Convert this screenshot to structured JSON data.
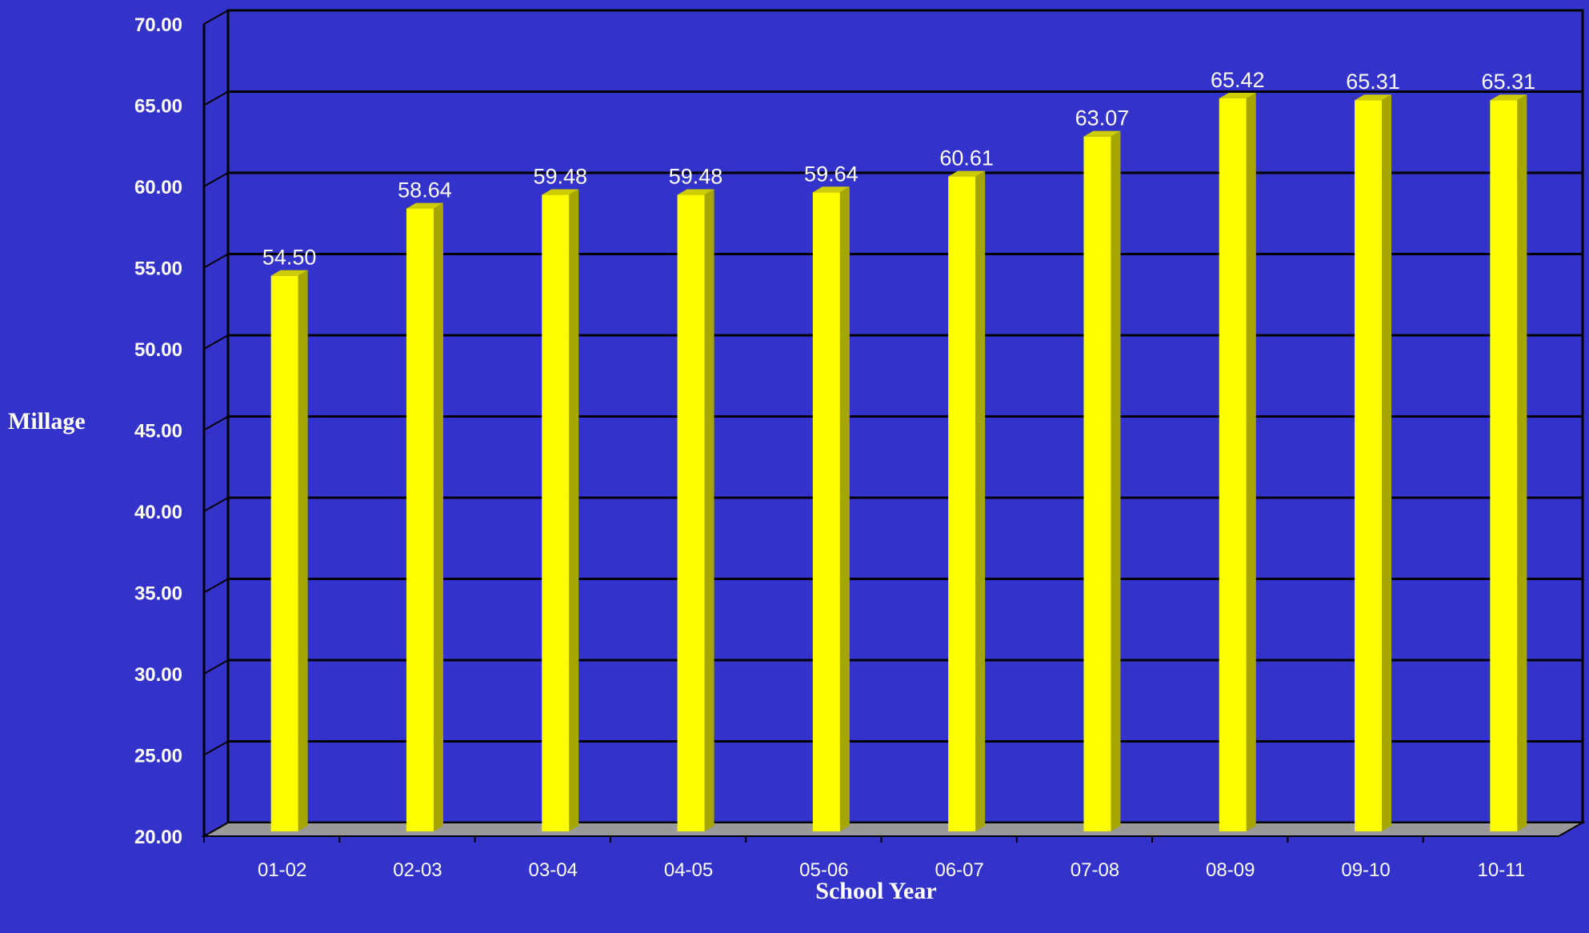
{
  "chart_data": {
    "type": "bar",
    "title": "",
    "xlabel": "School Year",
    "ylabel": "Millage",
    "categories": [
      "01-02",
      "02-03",
      "03-04",
      "04-05",
      "05-06",
      "06-07",
      "07-08",
      "08-09",
      "09-10",
      "10-11"
    ],
    "values": [
      54.5,
      58.64,
      59.48,
      59.48,
      59.64,
      60.61,
      63.07,
      65.42,
      65.31,
      65.31
    ],
    "value_labels": [
      "54.50",
      "58.64",
      "59.48",
      "59.48",
      "59.64",
      "60.61",
      "63.07",
      "65.42",
      "65.31",
      "65.31"
    ],
    "ylim": [
      20,
      70
    ],
    "yticks": [
      "20.00",
      "25.00",
      "30.00",
      "35.00",
      "40.00",
      "45.00",
      "50.00",
      "55.00",
      "60.00",
      "65.00",
      "70.00"
    ],
    "grid": true,
    "legend": "none",
    "style": "3d-column"
  },
  "colors": {
    "background": "#3333cc",
    "bar_front": "#ffff00",
    "bar_side": "#a6a600",
    "bar_top": "#cccc00",
    "floor": "#999999",
    "gridline": "#000000",
    "text": "#ffffff"
  }
}
